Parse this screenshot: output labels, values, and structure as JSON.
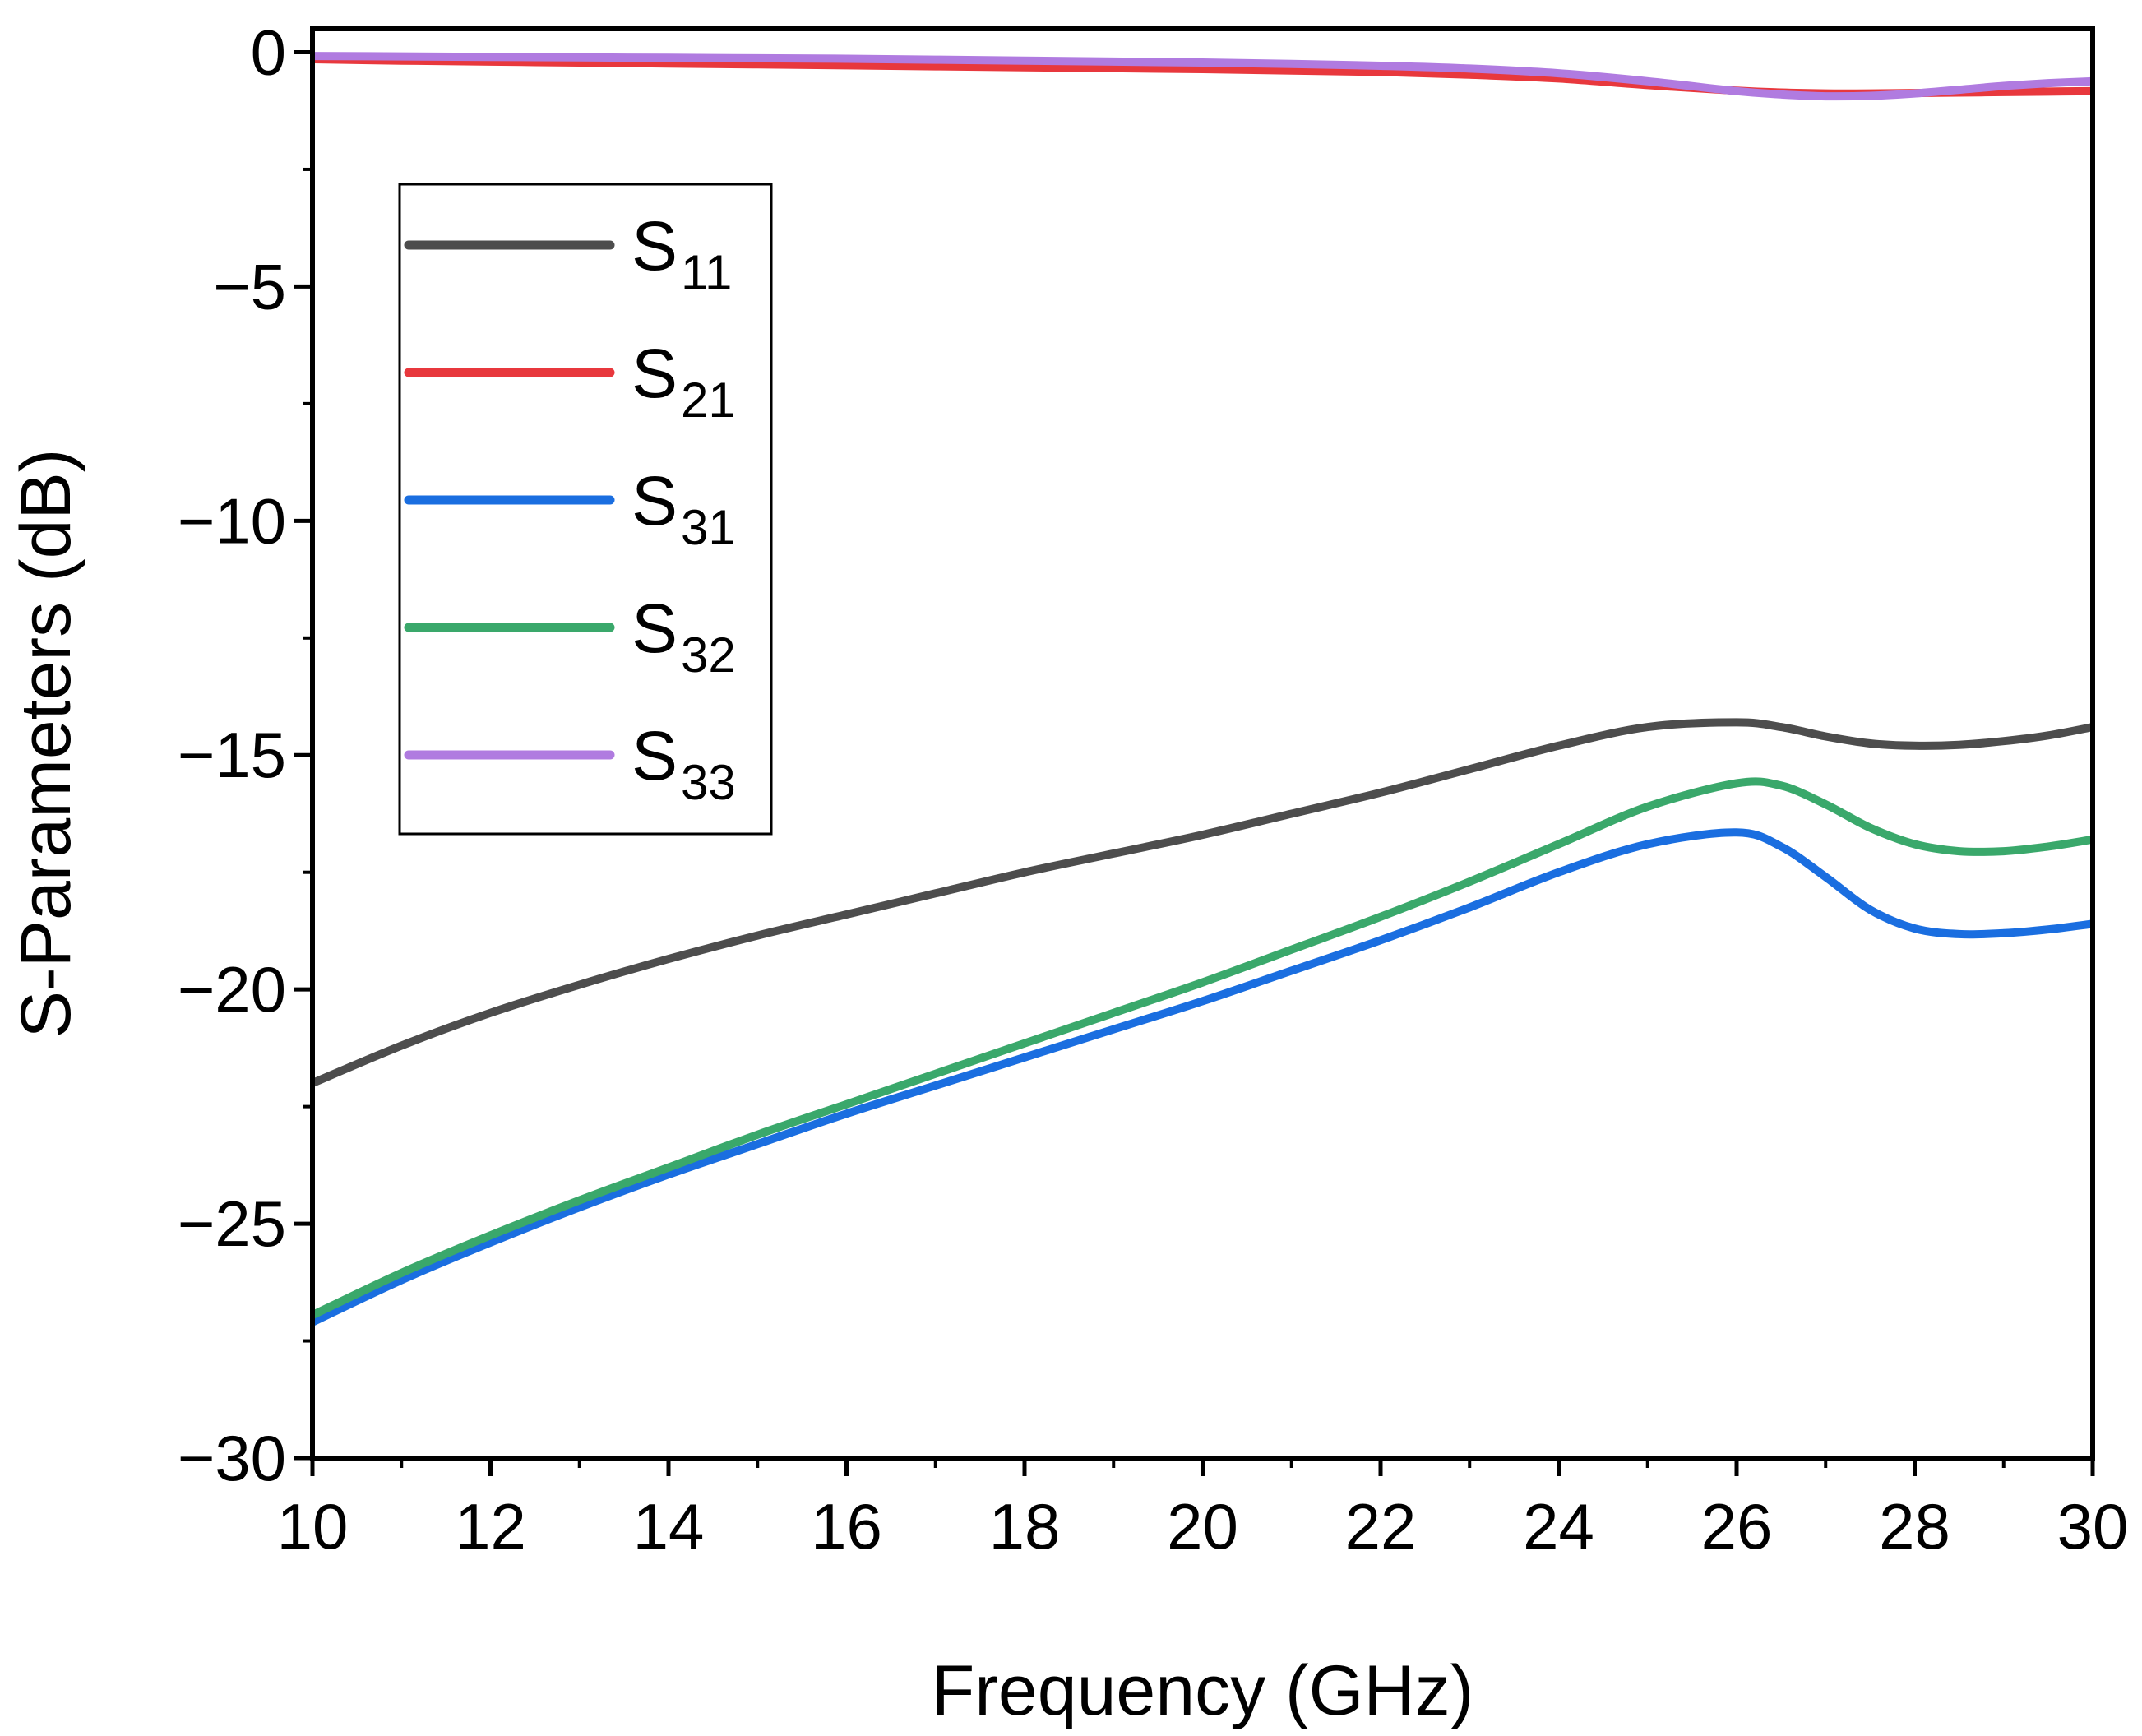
{
  "chart_data": {
    "type": "line",
    "title": "",
    "xlabel": "Frequency (GHz)",
    "ylabel": "S-Parameters (dB)",
    "xlim": [
      10,
      30
    ],
    "ylim": [
      -30,
      0.5
    ],
    "x_ticks": [
      10,
      12,
      14,
      16,
      18,
      20,
      22,
      24,
      26,
      28,
      30
    ],
    "x_tick_labels": [
      "10",
      "12",
      "14",
      "16",
      "18",
      "20",
      "22",
      "24",
      "26",
      "28",
      "30"
    ],
    "y_ticks": [
      0,
      -5,
      -10,
      -15,
      -20,
      -25,
      -30
    ],
    "y_tick_labels": [
      "0",
      "−5",
      "−10",
      "−15",
      "−20",
      "−25",
      "−30"
    ],
    "grid": false,
    "legend_position": "upper-left",
    "x": [
      10,
      11,
      12,
      13,
      14,
      15,
      16,
      17,
      18,
      19,
      20,
      21,
      22,
      23,
      24,
      25,
      26,
      26.5,
      27,
      27.5,
      28,
      28.5,
      29,
      29.5,
      30
    ],
    "series": [
      {
        "name": "S11",
        "label_main": "S",
        "label_sub": "11",
        "color": "#4d4d4d",
        "values": [
          -22.0,
          -21.2,
          -20.5,
          -19.9,
          -19.35,
          -18.85,
          -18.4,
          -17.95,
          -17.5,
          -17.1,
          -16.7,
          -16.25,
          -15.8,
          -15.3,
          -14.8,
          -14.4,
          -14.3,
          -14.4,
          -14.6,
          -14.75,
          -14.8,
          -14.78,
          -14.7,
          -14.58,
          -14.4
        ]
      },
      {
        "name": "S21",
        "label_main": "S",
        "label_sub": "21",
        "color": "#e8383d",
        "values": [
          -0.15,
          -0.18,
          -0.2,
          -0.22,
          -0.24,
          -0.26,
          -0.28,
          -0.3,
          -0.32,
          -0.34,
          -0.36,
          -0.39,
          -0.42,
          -0.48,
          -0.56,
          -0.7,
          -0.82,
          -0.86,
          -0.88,
          -0.88,
          -0.87,
          -0.86,
          -0.85,
          -0.84,
          -0.83
        ]
      },
      {
        "name": "S31",
        "label_main": "S",
        "label_sub": "31",
        "color": "#1a6ee0",
        "values": [
          -27.1,
          -26.2,
          -25.4,
          -24.65,
          -23.95,
          -23.3,
          -22.65,
          -22.05,
          -21.45,
          -20.85,
          -20.25,
          -19.6,
          -18.95,
          -18.25,
          -17.5,
          -16.9,
          -16.65,
          -16.95,
          -17.6,
          -18.3,
          -18.7,
          -18.82,
          -18.8,
          -18.72,
          -18.6
        ]
      },
      {
        "name": "S32",
        "label_main": "S",
        "label_sub": "32",
        "color": "#3aa86b",
        "values": [
          -26.95,
          -26.05,
          -25.25,
          -24.5,
          -23.8,
          -23.1,
          -22.45,
          -21.8,
          -21.15,
          -20.5,
          -19.85,
          -19.15,
          -18.45,
          -17.7,
          -16.9,
          -16.1,
          -15.6,
          -15.65,
          -16.05,
          -16.55,
          -16.9,
          -17.05,
          -17.05,
          -16.95,
          -16.8
        ]
      },
      {
        "name": "S33",
        "label_main": "S",
        "label_sub": "33",
        "color": "#b07be0",
        "values": [
          -0.08,
          -0.09,
          -0.1,
          -0.11,
          -0.12,
          -0.13,
          -0.14,
          -0.16,
          -0.18,
          -0.2,
          -0.22,
          -0.25,
          -0.29,
          -0.35,
          -0.45,
          -0.62,
          -0.83,
          -0.9,
          -0.94,
          -0.93,
          -0.88,
          -0.8,
          -0.72,
          -0.66,
          -0.62
        ]
      }
    ]
  }
}
